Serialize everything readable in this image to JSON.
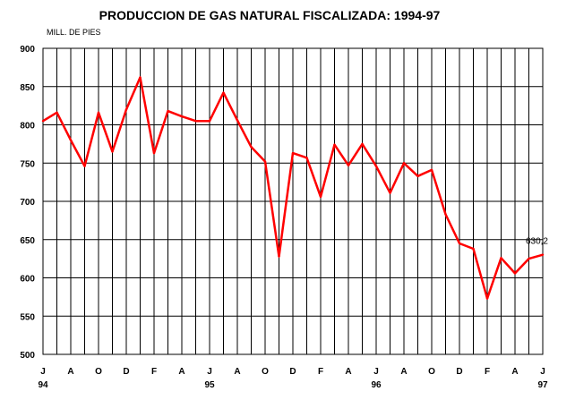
{
  "chart_data": {
    "type": "line",
    "title": "PRODUCCION DE GAS NATURAL FISCALIZADA: 1994-97",
    "ylabel": "MILL. DE PIES",
    "ylim": [
      500,
      900
    ],
    "yticks": [
      500,
      550,
      600,
      650,
      700,
      750,
      800,
      850,
      900
    ],
    "xtick_labels": [
      "J",
      "A",
      "O",
      "D",
      "F",
      "A",
      "J",
      "A",
      "O",
      "D",
      "F",
      "A",
      "J",
      "A",
      "O",
      "D",
      "F",
      "A",
      "J"
    ],
    "year_labels": [
      {
        "tick": 0,
        "label": "94"
      },
      {
        "tick": 6,
        "label": "95"
      },
      {
        "tick": 12,
        "label": "96"
      },
      {
        "tick": 18,
        "label": "97"
      }
    ],
    "grid": true,
    "series": [
      {
        "color": "#ff0000",
        "values": [
          805,
          816,
          780,
          746,
          816,
          765,
          820,
          862,
          763,
          818,
          811,
          805,
          805,
          842,
          806,
          771,
          752,
          628,
          763,
          757,
          706,
          774,
          747,
          775,
          746,
          711,
          750,
          733,
          741,
          683,
          645,
          638,
          573,
          626,
          606,
          625,
          630.2
        ]
      }
    ],
    "data_label": {
      "index": 36,
      "text": "630,2"
    }
  }
}
